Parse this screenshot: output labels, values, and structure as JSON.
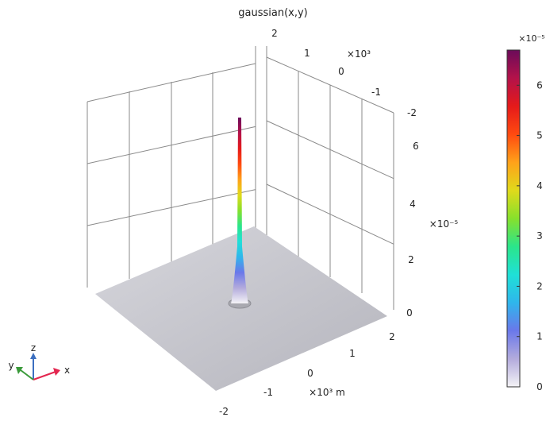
{
  "title": "gaussian(x,y)",
  "chart_data": {
    "type": "surface3d",
    "title": "gaussian(x,y)",
    "x_axis": {
      "label": "×10³ m",
      "scale_exponent": "×10³",
      "unit": "m",
      "ticks": [
        "-2",
        "-1",
        "0",
        "1",
        "2"
      ],
      "range": [
        -2,
        2
      ]
    },
    "y_axis": {
      "scale_exponent": "×10³",
      "ticks": [
        "2",
        "1",
        "0",
        "-1",
        "-2"
      ],
      "range": [
        -2,
        2
      ]
    },
    "z_axis": {
      "scale_exponent": "×10⁻⁵",
      "ticks": [
        "0",
        "2",
        "4",
        "6"
      ],
      "range": [
        0,
        6.7
      ]
    },
    "peak": {
      "x": 0,
      "y": 0,
      "value": 6.6
    },
    "colorbar": {
      "exponent": "×10⁻⁵",
      "ticks": [
        "0",
        "1",
        "2",
        "3",
        "4",
        "5",
        "6"
      ],
      "range": [
        0,
        6.7
      ],
      "colormap": [
        "#f4f3f6",
        "#b3abdc",
        "#6a78ea",
        "#2fb6ec",
        "#1fe0d7",
        "#2be58a",
        "#87e02c",
        "#e0da1b",
        "#ffa11a",
        "#ff4a10",
        "#e51a1a",
        "#b3124a",
        "#6b0b5a"
      ]
    },
    "surface_color": "#c4c4cb",
    "grid": true
  },
  "triad": {
    "x": "x",
    "y": "y",
    "z": "z",
    "x_color": "#e3264f",
    "y_color": "#3a9a3a",
    "z_color": "#3c6fc0"
  }
}
